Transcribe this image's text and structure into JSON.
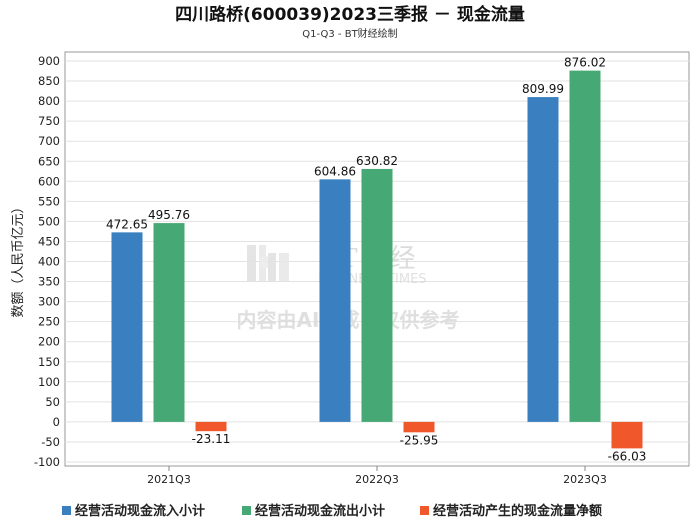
{
  "chart_data": {
    "type": "bar",
    "title": "四川路桥(600039)2023三季报 － 现金流量",
    "subtitle": "Q1-Q3 - BT财经绘制",
    "ylabel": "数额（人民币亿元）",
    "xlabel": "",
    "categories": [
      "2021Q3",
      "2022Q3",
      "2023Q3"
    ],
    "ylim": [
      -100,
      900
    ],
    "yticks": [
      -100,
      -50,
      0,
      50,
      100,
      150,
      200,
      250,
      300,
      350,
      400,
      450,
      500,
      550,
      600,
      650,
      700,
      750,
      800,
      850,
      900
    ],
    "grid": true,
    "legend_position": "bottom",
    "series": [
      {
        "name": "经营活动现金流入小计",
        "color": "#3a7fbf",
        "values": [
          472.65,
          604.86,
          809.99
        ],
        "labels": [
          "472.65",
          "604.86",
          "809.99"
        ]
      },
      {
        "name": "经营活动现金流出小计",
        "color": "#46a874",
        "values": [
          495.76,
          630.82,
          876.02
        ],
        "labels": [
          "495.76",
          "630.82",
          "876.02"
        ]
      },
      {
        "name": "经营活动产生的现金流量净额",
        "color": "#f0572a",
        "values": [
          -23.11,
          -25.95,
          -66.03
        ],
        "labels": [
          "-23.11",
          "-25.95",
          "-66.03"
        ]
      }
    ]
  },
  "watermark": {
    "brand": "BT财经",
    "brand_sub": "BUSINESS TIMES",
    "note": "内容由AI生成，仅供参考"
  }
}
